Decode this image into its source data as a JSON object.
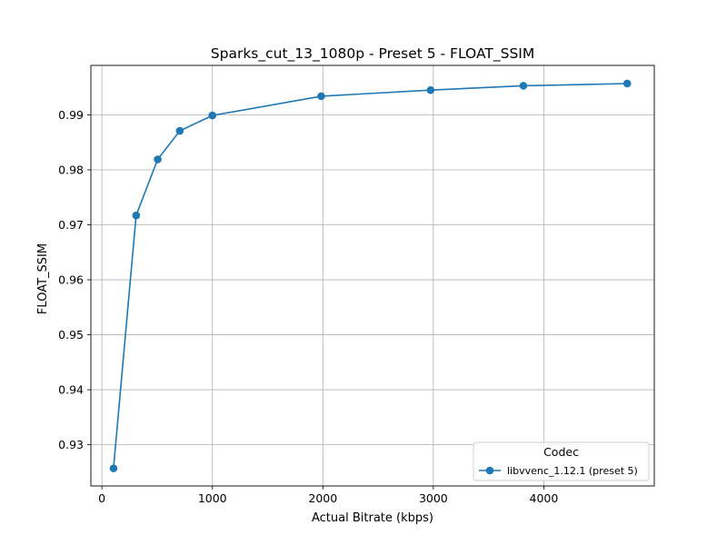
{
  "chart_data": {
    "type": "line",
    "title": "Sparks_cut_13_1080p - Preset 5 - FLOAT_SSIM",
    "xlabel": "Actual Bitrate (kbps)",
    "ylabel": "FLOAT_SSIM",
    "xlim": [
      -100,
      5000
    ],
    "ylim": [
      0.9225,
      0.999
    ],
    "xticks": [
      0,
      1000,
      2000,
      3000,
      4000
    ],
    "yticks": [
      0.93,
      0.94,
      0.95,
      0.96,
      0.97,
      0.98,
      0.99
    ],
    "xtick_labels": [
      "0",
      "1000",
      "2000",
      "3000",
      "4000"
    ],
    "ytick_labels": [
      "0.93",
      "0.94",
      "0.95",
      "0.96",
      "0.97",
      "0.98",
      "0.99"
    ],
    "grid": true,
    "legend": {
      "title": "Codec",
      "placement": "lower-right"
    },
    "series": [
      {
        "name": "libvvenc_1.12.1 (preset 5)",
        "color": "#1f77b4",
        "marker": "circle",
        "x": [
          105,
          310,
          505,
          705,
          1000,
          1985,
          2975,
          3815,
          4755
        ],
        "y": [
          0.9257,
          0.9717,
          0.9819,
          0.9871,
          0.9899,
          0.9934,
          0.9945,
          0.9953,
          0.9957
        ]
      }
    ]
  }
}
